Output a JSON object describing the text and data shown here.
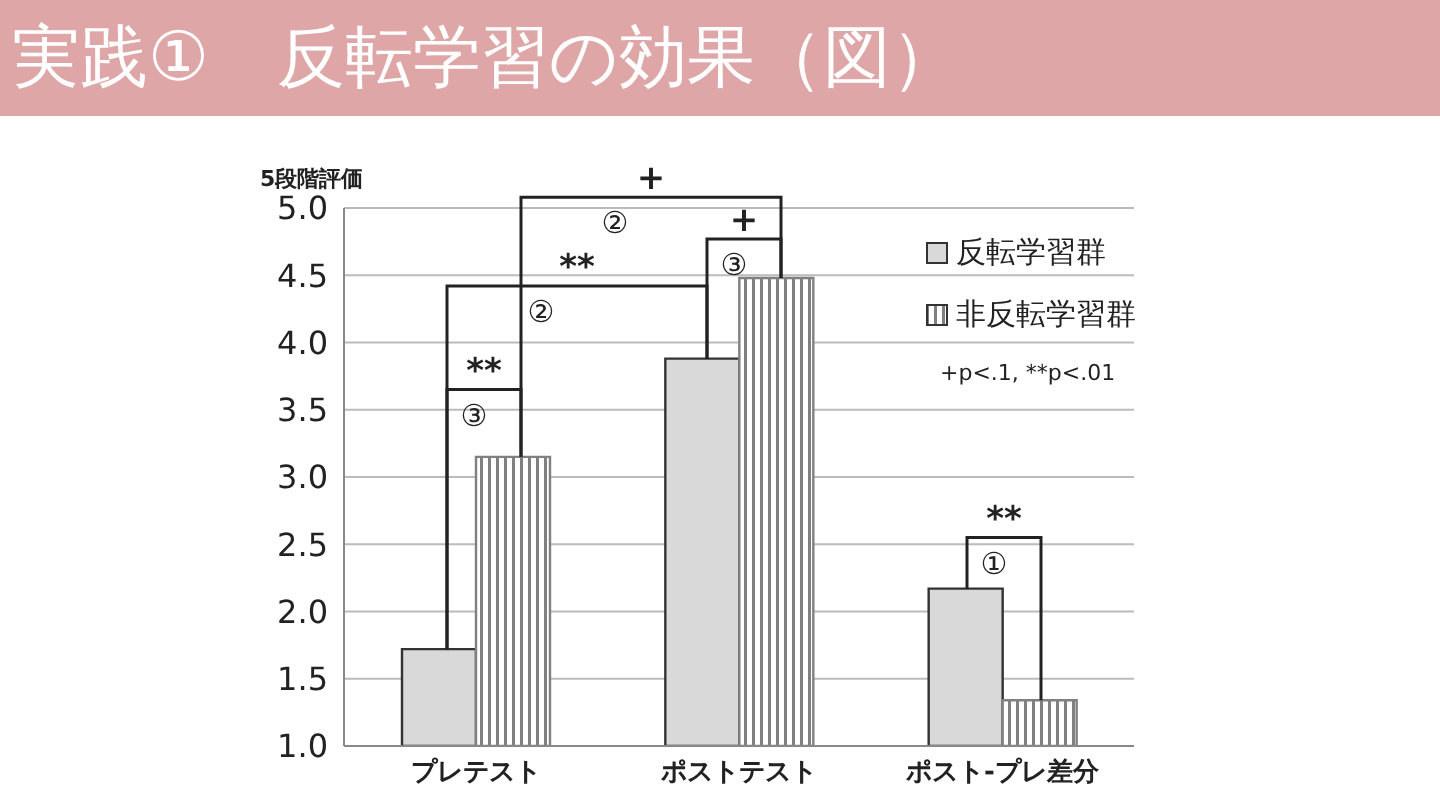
{
  "chart_data": {
    "type": "bar",
    "title": "実践①　反転学習の効果（図）",
    "ylabel": "5段階評価",
    "categories": [
      "プレテスト",
      "ポストテスト",
      "ポスト-プレ差分"
    ],
    "series": [
      {
        "name": "反転学習群",
        "color": "#d9d9d9",
        "values": [
          1.72,
          3.88,
          2.17
        ]
      },
      {
        "name": "非反転学習群",
        "color": "#808080",
        "values": [
          3.15,
          4.48,
          1.34
        ]
      }
    ],
    "ylim": [
      1.0,
      5.0
    ],
    "yticks": [
      {
        "value": 1,
        "label": "1.0"
      },
      {
        "value": 1.5,
        "label": "1.5"
      },
      {
        "value": 2,
        "label": "2.0"
      },
      {
        "value": 2.5,
        "label": "2.5"
      },
      {
        "value": 3,
        "label": "3.0"
      },
      {
        "value": 3.5,
        "label": "3.5"
      },
      {
        "value": 4,
        "label": "4.0"
      },
      {
        "value": 4.5,
        "label": "4.5"
      },
      {
        "value": 5,
        "label": "5.0"
      }
    ],
    "grid": "y",
    "legend": "top right",
    "annotations": [
      "**",
      "③",
      "**",
      "②",
      "+",
      "②",
      "+",
      "③",
      "**",
      "①",
      "+p<.1, **p<.01"
    ]
  }
}
